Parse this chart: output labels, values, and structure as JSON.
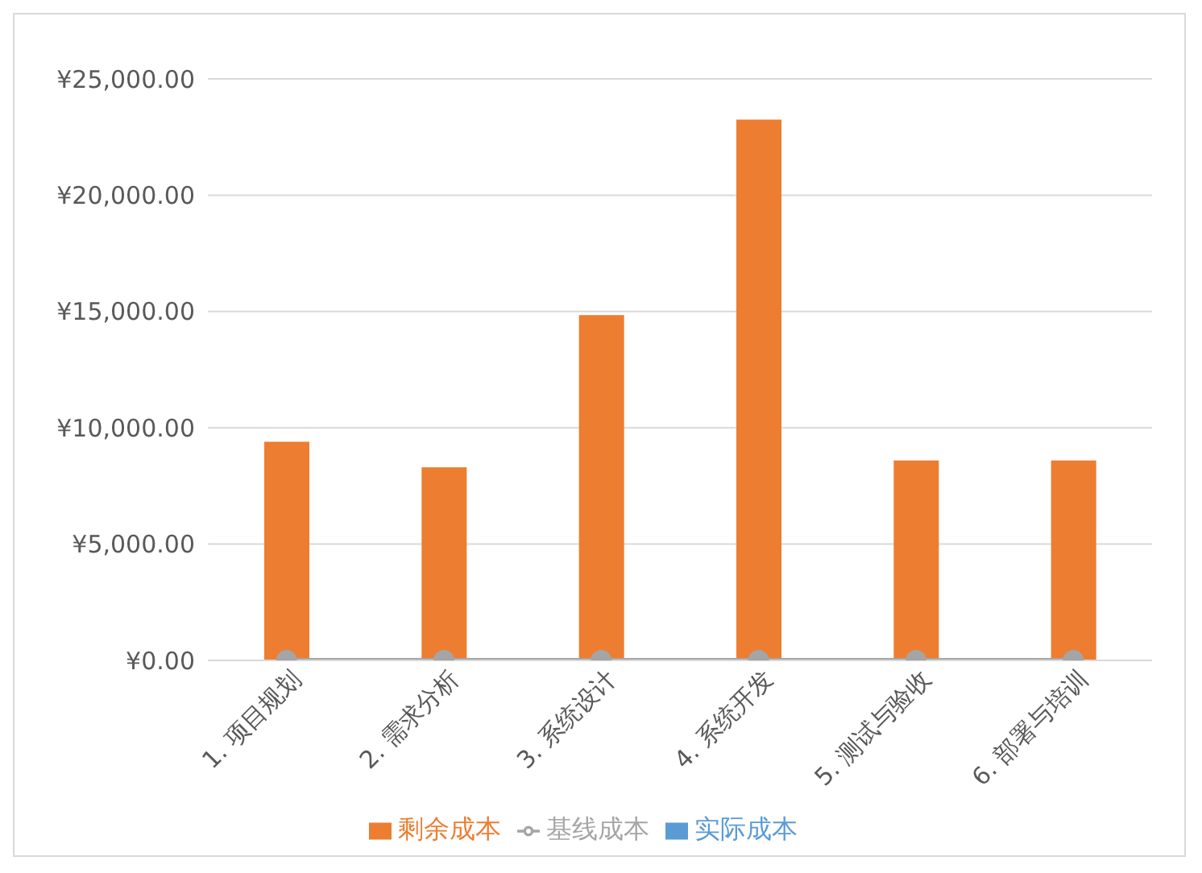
{
  "chart_data": {
    "type": "bar",
    "stacked": true,
    "categories": [
      "1. 项目规划",
      "2. 需求分析",
      "3. 系统设计",
      "4. 系统开发",
      "5. 测试与验收",
      "6. 部署与培训"
    ],
    "series": [
      {
        "name": "实际成本",
        "color": "#5b9bd5",
        "values": [
          0,
          0,
          0,
          0,
          0,
          0
        ]
      },
      {
        "name": "剩余成本",
        "color": "#ed7d31",
        "values": [
          9400,
          8300,
          14850,
          23250,
          8600,
          8600
        ]
      },
      {
        "name": "基线成本",
        "type": "line",
        "color": "#a5a5a5",
        "marker": "circle",
        "values": [
          0,
          0,
          0,
          0,
          0,
          0
        ]
      }
    ],
    "ylim": [
      0,
      25000
    ],
    "yticks": [
      {
        "value": 0,
        "label": "¥0.00"
      },
      {
        "value": 5000,
        "label": "¥5,000.00"
      },
      {
        "value": 10000,
        "label": "¥10,000.00"
      },
      {
        "value": 15000,
        "label": "¥15,000.00"
      },
      {
        "value": 20000,
        "label": "¥20,000.00"
      },
      {
        "value": 25000,
        "label": "¥25,000.00"
      }
    ],
    "grid": "y",
    "legend": "bottom"
  }
}
